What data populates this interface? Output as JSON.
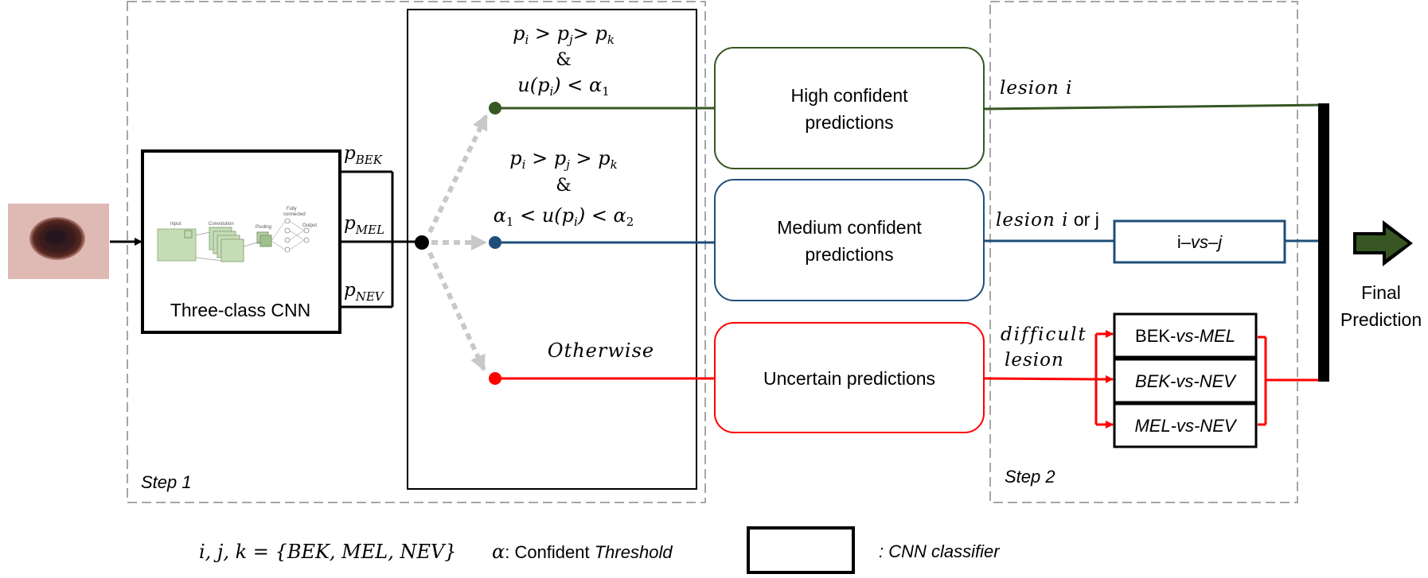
{
  "step1": {
    "label": "Step 1"
  },
  "step2": {
    "label": "Step 2"
  },
  "cnn": {
    "title": "Three-class CNN",
    "mini": {
      "input": "Input",
      "convolution": "Convolution",
      "pooling": "Pooling",
      "fully1": "Fully",
      "fully2": "connected",
      "output": "Output"
    }
  },
  "outputs": {
    "bek": {
      "p": "p",
      "sub": "BEK"
    },
    "mel": {
      "p": "p",
      "sub": "MEL"
    },
    "nev": {
      "p": "p",
      "sub": "NEV"
    }
  },
  "conditions": {
    "high": {
      "line1": {
        "pi": "p",
        "si": "i",
        "gt1": " > ",
        "pj": "p",
        "sj": "j",
        "gt2": "> ",
        "pk": "p",
        "sk": "k"
      },
      "amp": "&",
      "line3": {
        "u": "u(p",
        "si": "i",
        "rest": ") < α",
        "sub": "1"
      }
    },
    "medium": {
      "line1": {
        "pi": "p",
        "si": "i",
        "gt1": " > ",
        "pj": "p",
        "sj": "j",
        "gt2": " > ",
        "pk": "p",
        "sk": "k"
      },
      "amp": "&",
      "line3": {
        "a": "α",
        "s1": "1",
        "mid": " < u(p",
        "si": "i",
        "rest": ") < α",
        "s2": "2"
      }
    },
    "otherwise": "Otherwise"
  },
  "predictions": {
    "high": {
      "line1": "High confident",
      "line2": "predictions"
    },
    "medium": {
      "line1": "Medium confident",
      "line2": "predictions"
    },
    "uncertain": {
      "line1": "Uncertain predictions"
    }
  },
  "lesion_labels": {
    "high": "lesion i",
    "medium": {
      "italic": "lesion i",
      "rest": " or j"
    },
    "difficult": {
      "line1": "difficult",
      "line2": "lesion"
    }
  },
  "classifiers": {
    "ivsj": {
      "a": "i–",
      "b": "vs",
      "c": "–j"
    },
    "bek_mel": {
      "a": "BEK-",
      "b": "vs-MEL"
    },
    "bek_nev": "BEK-vs-NEV",
    "mel_nev": "MEL-vs-NEV"
  },
  "final": {
    "line1": "Final",
    "line2": "Prediction"
  },
  "legend": {
    "set": "i, j, k = {BEK, MEL, NEV}",
    "alpha": {
      "sym": "α",
      "mid": ": Confident ",
      "italic": "Threshold"
    },
    "cnn": ": CNN classifier"
  },
  "colors": {
    "high": "#375623",
    "medium": "#1f4e79",
    "uncertain": "#ff0000",
    "dashed": "#a6a6a6",
    "arrow_dotted": "#c0c0c0"
  }
}
